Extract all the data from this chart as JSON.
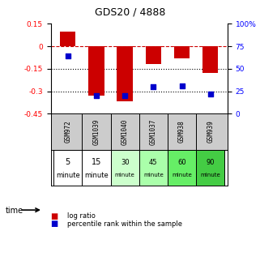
{
  "title": "GDS20 / 4888",
  "samples": [
    "GSM972",
    "GSM1039",
    "GSM1040",
    "GSM1037",
    "GSM938",
    "GSM939"
  ],
  "time_labels_top": [
    "5",
    "15",
    "30",
    "45",
    "60",
    "90"
  ],
  "time_labels_bot": [
    "minute",
    "minute",
    "minute",
    "minute",
    "minute",
    "minute"
  ],
  "time_colors": [
    "#ffffff",
    "#ffffff",
    "#ccffcc",
    "#aaffaa",
    "#66ee66",
    "#44cc44"
  ],
  "log_ratio": [
    0.1,
    -0.33,
    -0.37,
    -0.12,
    -0.08,
    -0.18
  ],
  "percentile_rank": [
    64,
    20,
    20,
    30,
    31,
    22
  ],
  "bar_color": "#cc0000",
  "dot_color": "#0000cc",
  "left_ylim": [
    -0.45,
    0.15
  ],
  "left_yticks": [
    0.15,
    0.0,
    -0.15,
    -0.3,
    -0.45
  ],
  "left_yticklabels": [
    "0.15",
    "0",
    "-0.15",
    "-0.3",
    "-0.45"
  ],
  "right_ylim": [
    0,
    100
  ],
  "right_yticks": [
    100,
    75,
    50,
    25,
    0
  ],
  "right_yticklabels": [
    "100%",
    "75",
    "50",
    "25",
    "0"
  ],
  "zero_line_color": "#cc0000",
  "hline_positions": [
    -0.15,
    -0.3
  ],
  "bar_width": 0.55,
  "sample_bg": "#cccccc"
}
